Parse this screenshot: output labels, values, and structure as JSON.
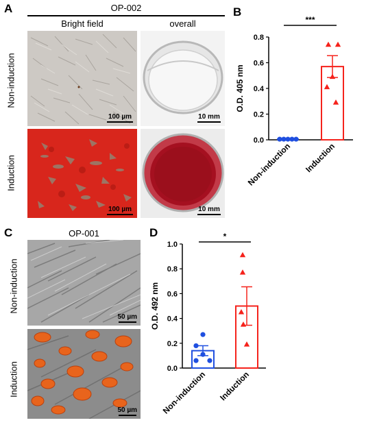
{
  "panels": {
    "A": {
      "letter": "A",
      "sample": "OP-002",
      "col_labels": [
        "Bright field",
        "overall"
      ],
      "row_labels": [
        "Non-induction",
        "Induction"
      ],
      "scalebars": [
        "100 µm",
        "10 mm",
        "100 µm",
        "10 mm"
      ]
    },
    "B": {
      "letter": "B"
    },
    "C": {
      "letter": "C",
      "sample": "OP-001",
      "row_labels": [
        "Non-induction",
        "Induction"
      ],
      "scalebars": [
        "50 µm",
        "50 µm"
      ]
    },
    "D": {
      "letter": "D"
    }
  },
  "colors": {
    "non_induction": "#1f4fe0",
    "induction": "#f5221b",
    "alizarin_red": "#d8261c",
    "oil_red": "#e8641c"
  },
  "chart_data": [
    {
      "panel": "B",
      "type": "bar",
      "categories": [
        "Non-induction",
        "Induction"
      ],
      "values": [
        0.005,
        0.57
      ],
      "errors": [
        0.002,
        0.085
      ],
      "points": [
        [
          0.005,
          0.005,
          0.005,
          0.005,
          0.005
        ],
        [
          0.74,
          0.74,
          0.49,
          0.41,
          0.29
        ]
      ],
      "ylabel": "O.D. 405 nm",
      "ylim": [
        0,
        0.8
      ],
      "yticks": [
        "0.0",
        "0.2",
        "0.4",
        "0.6",
        "0.8"
      ],
      "significance": "***"
    },
    {
      "panel": "D",
      "type": "bar",
      "categories": [
        "Non-induction",
        "Induction"
      ],
      "values": [
        0.14,
        0.5
      ],
      "errors": [
        0.04,
        0.155
      ],
      "points": [
        [
          0.27,
          0.18,
          0.11,
          0.06,
          0.06
        ],
        [
          0.91,
          0.77,
          0.45,
          0.35,
          0.19
        ]
      ],
      "ylabel": "O.D. 492 nm",
      "ylim": [
        0,
        1.0
      ],
      "yticks": [
        "0.0",
        "0.2",
        "0.4",
        "0.6",
        "0.8",
        "1.0"
      ],
      "significance": "*"
    }
  ]
}
